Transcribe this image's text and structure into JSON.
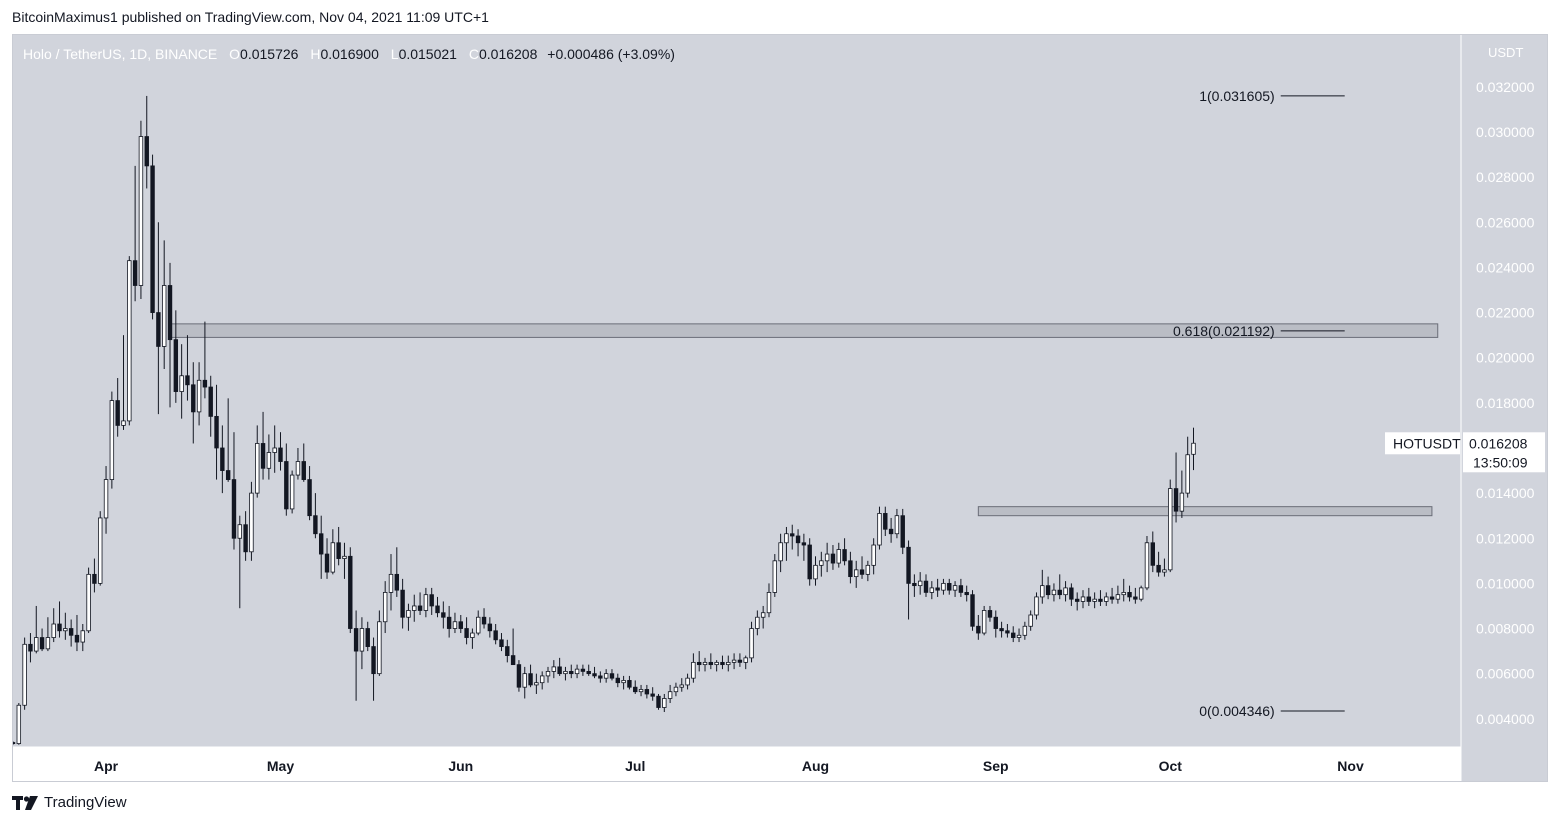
{
  "header": {
    "publisher_line": "BitcoinMaximus1 published on TradingView.com, Nov 04, 2021 11:09 UTC+1"
  },
  "footer": {
    "brand": "TradingView"
  },
  "colors": {
    "plot_bg": "#d1d4dc",
    "axis_bg": "#ffffff",
    "text": "#131722",
    "axis_text": "#ffffff",
    "candle_up_fill": "#ffffff",
    "candle_down_fill": "#131722",
    "candle_outline": "#131722",
    "zone_fill": "#b2b5be",
    "zone_border": "#6a6d78"
  },
  "chart_data": {
    "type": "candlestick",
    "symbol_line": {
      "name": "Holo / TetherUS, 1D, BINANCE",
      "o_label": "O",
      "o": "0.015726",
      "h_label": "H",
      "h": "0.016900",
      "l_label": "L",
      "l": "0.015021",
      "c_label": "C",
      "c": "0.016208",
      "change": "+0.000486 (+3.09%)"
    },
    "currency_label": "USDT",
    "ylim": [
      0.00275,
      0.0343
    ],
    "y_ticks": [
      {
        "value": 0.004,
        "label": "0.004000"
      },
      {
        "value": 0.006,
        "label": "0.006000"
      },
      {
        "value": 0.008,
        "label": "0.008000"
      },
      {
        "value": 0.01,
        "label": "0.010000"
      },
      {
        "value": 0.012,
        "label": "0.012000"
      },
      {
        "value": 0.014,
        "label": "0.014000"
      },
      {
        "value": 0.016,
        "label": "0.016000"
      },
      {
        "value": 0.018,
        "label": "0.018000"
      },
      {
        "value": 0.02,
        "label": "0.020000"
      },
      {
        "value": 0.022,
        "label": "0.022000"
      },
      {
        "value": 0.024,
        "label": "0.024000"
      },
      {
        "value": 0.026,
        "label": "0.026000"
      },
      {
        "value": 0.028,
        "label": "0.028000"
      },
      {
        "value": 0.03,
        "label": "0.030000"
      },
      {
        "value": 0.032,
        "label": "0.032000"
      }
    ],
    "x_domain": [
      "2021-03-16",
      "2021-11-20"
    ],
    "x_ticks": [
      {
        "date": "2021-04-01",
        "label": "Apr"
      },
      {
        "date": "2021-05-01",
        "label": "May"
      },
      {
        "date": "2021-06-01",
        "label": "Jun"
      },
      {
        "date": "2021-07-01",
        "label": "Jul"
      },
      {
        "date": "2021-08-01",
        "label": "Aug"
      },
      {
        "date": "2021-09-01",
        "label": "Sep"
      },
      {
        "date": "2021-10-01",
        "label": "Oct"
      },
      {
        "date": "2021-11-01",
        "label": "Nov"
      }
    ],
    "first_date": "2021-03-16",
    "price_tag": {
      "symbol": "HOTUSDT",
      "price": "0.016208",
      "countdown": "13:50:09",
      "value": 0.016208
    },
    "zones": [
      {
        "start": "2021-04-12",
        "end": "2021-11-16",
        "low": 0.0209,
        "high": 0.0215
      },
      {
        "start": "2021-08-29",
        "end": "2021-11-15",
        "low": 0.013,
        "high": 0.0134
      }
    ],
    "fib_levels": [
      {
        "label": "1(0.031605)",
        "value": 0.031605,
        "line_start": "2021-10-20",
        "line_end": "2021-10-31"
      },
      {
        "label": "0.618(0.021192)",
        "value": 0.021192,
        "line_start": "2021-10-20",
        "line_end": "2021-10-31"
      },
      {
        "label": "0(0.004346)",
        "value": 0.004346,
        "line_start": "2021-10-20",
        "line_end": "2021-10-31"
      }
    ],
    "ohlc": [
      [
        0.00295,
        0.003,
        0.00285,
        0.0029
      ],
      [
        0.0029,
        0.0047,
        0.00285,
        0.0046
      ],
      [
        0.0046,
        0.0076,
        0.0044,
        0.0073
      ],
      [
        0.0073,
        0.0078,
        0.0065,
        0.007
      ],
      [
        0.007,
        0.009,
        0.0069,
        0.0076
      ],
      [
        0.0076,
        0.008,
        0.007,
        0.0071
      ],
      [
        0.0071,
        0.0085,
        0.007,
        0.0076
      ],
      [
        0.0076,
        0.0089,
        0.0074,
        0.0082
      ],
      [
        0.0082,
        0.0092,
        0.0076,
        0.0079
      ],
      [
        0.0079,
        0.0087,
        0.0075,
        0.008
      ],
      [
        0.008,
        0.0084,
        0.0072,
        0.0077
      ],
      [
        0.0077,
        0.0086,
        0.007,
        0.0074
      ],
      [
        0.0074,
        0.0082,
        0.007,
        0.0079
      ],
      [
        0.0079,
        0.0107,
        0.0078,
        0.0104
      ],
      [
        0.0104,
        0.0111,
        0.0096,
        0.01
      ],
      [
        0.01,
        0.0132,
        0.0099,
        0.0129
      ],
      [
        0.0129,
        0.0152,
        0.0122,
        0.0146
      ],
      [
        0.0146,
        0.0185,
        0.0142,
        0.0181
      ],
      [
        0.0181,
        0.0191,
        0.0165,
        0.017
      ],
      [
        0.017,
        0.021,
        0.0168,
        0.0172
      ],
      [
        0.0172,
        0.0245,
        0.017,
        0.0243
      ],
      [
        0.0243,
        0.0285,
        0.0225,
        0.0232
      ],
      [
        0.0232,
        0.0305,
        0.0226,
        0.0298
      ],
      [
        0.0298,
        0.0316,
        0.0275,
        0.0285
      ],
      [
        0.0285,
        0.029,
        0.0217,
        0.022
      ],
      [
        0.022,
        0.026,
        0.0175,
        0.0205
      ],
      [
        0.0205,
        0.0252,
        0.0195,
        0.0232
      ],
      [
        0.0232,
        0.0242,
        0.0178,
        0.0208
      ],
      [
        0.0208,
        0.0221,
        0.018,
        0.0185
      ],
      [
        0.0185,
        0.0206,
        0.0173,
        0.0192
      ],
      [
        0.0192,
        0.021,
        0.0181,
        0.0188
      ],
      [
        0.0188,
        0.0198,
        0.0162,
        0.0176
      ],
      [
        0.0176,
        0.0198,
        0.017,
        0.019
      ],
      [
        0.019,
        0.0216,
        0.0182,
        0.0187
      ],
      [
        0.0187,
        0.0192,
        0.0165,
        0.0174
      ],
      [
        0.0174,
        0.0188,
        0.0146,
        0.016
      ],
      [
        0.016,
        0.017,
        0.014,
        0.015
      ],
      [
        0.015,
        0.0182,
        0.0145,
        0.0146
      ],
      [
        0.0146,
        0.0167,
        0.0115,
        0.012
      ],
      [
        0.012,
        0.013,
        0.0089,
        0.0126
      ],
      [
        0.0126,
        0.0132,
        0.011,
        0.0114
      ],
      [
        0.0114,
        0.0145,
        0.011,
        0.014
      ],
      [
        0.014,
        0.017,
        0.0138,
        0.0162
      ],
      [
        0.0162,
        0.0176,
        0.0146,
        0.0151
      ],
      [
        0.0151,
        0.0166,
        0.0146,
        0.0158
      ],
      [
        0.0158,
        0.017,
        0.0149,
        0.016
      ],
      [
        0.016,
        0.0167,
        0.015,
        0.0154
      ],
      [
        0.0154,
        0.0162,
        0.013,
        0.0133
      ],
      [
        0.0133,
        0.015,
        0.0131,
        0.0148
      ],
      [
        0.0148,
        0.016,
        0.0146,
        0.0154
      ],
      [
        0.0154,
        0.0162,
        0.0145,
        0.0146
      ],
      [
        0.0146,
        0.0152,
        0.0128,
        0.013
      ],
      [
        0.013,
        0.014,
        0.012,
        0.0122
      ],
      [
        0.0122,
        0.013,
        0.0102,
        0.0113
      ],
      [
        0.0113,
        0.012,
        0.0102,
        0.0105
      ],
      [
        0.0105,
        0.0124,
        0.0104,
        0.0118
      ],
      [
        0.0118,
        0.0125,
        0.0108,
        0.0111
      ],
      [
        0.0111,
        0.0118,
        0.0102,
        0.0112
      ],
      [
        0.0112,
        0.0116,
        0.0078,
        0.008
      ],
      [
        0.008,
        0.0088,
        0.0048,
        0.007
      ],
      [
        0.007,
        0.0085,
        0.0062,
        0.008
      ],
      [
        0.008,
        0.0083,
        0.007,
        0.0072
      ],
      [
        0.0072,
        0.0076,
        0.0048,
        0.006
      ],
      [
        0.006,
        0.0088,
        0.0059,
        0.0083
      ],
      [
        0.0083,
        0.0101,
        0.0078,
        0.0096
      ],
      [
        0.0096,
        0.0113,
        0.0088,
        0.0104
      ],
      [
        0.0104,
        0.0116,
        0.0094,
        0.0097
      ],
      [
        0.0097,
        0.0102,
        0.008,
        0.0085
      ],
      [
        0.0085,
        0.0091,
        0.0079,
        0.0088
      ],
      [
        0.0088,
        0.0095,
        0.0083,
        0.009
      ],
      [
        0.009,
        0.0096,
        0.0086,
        0.0088
      ],
      [
        0.0088,
        0.0098,
        0.0085,
        0.0095
      ],
      [
        0.0095,
        0.0098,
        0.0086,
        0.009
      ],
      [
        0.009,
        0.0094,
        0.0085,
        0.0087
      ],
      [
        0.0087,
        0.0092,
        0.008,
        0.0085
      ],
      [
        0.0085,
        0.009,
        0.0076,
        0.008
      ],
      [
        0.008,
        0.0087,
        0.0078,
        0.0083
      ],
      [
        0.0083,
        0.0086,
        0.0078,
        0.008
      ],
      [
        0.008,
        0.0085,
        0.0073,
        0.0076
      ],
      [
        0.0076,
        0.008,
        0.0071,
        0.0078
      ],
      [
        0.0078,
        0.0088,
        0.0077,
        0.0085
      ],
      [
        0.0085,
        0.0089,
        0.008,
        0.0082
      ],
      [
        0.0082,
        0.0085,
        0.0076,
        0.0079
      ],
      [
        0.0079,
        0.0082,
        0.0073,
        0.0075
      ],
      [
        0.0075,
        0.0078,
        0.007,
        0.0072
      ],
      [
        0.0072,
        0.0075,
        0.0065,
        0.0068
      ],
      [
        0.0068,
        0.008,
        0.0066,
        0.0064
      ],
      [
        0.0064,
        0.0066,
        0.0052,
        0.0054
      ],
      [
        0.0054,
        0.0063,
        0.0049,
        0.006
      ],
      [
        0.006,
        0.0064,
        0.0054,
        0.0055
      ],
      [
        0.0055,
        0.006,
        0.0051,
        0.0056
      ],
      [
        0.0056,
        0.0061,
        0.0053,
        0.0059
      ],
      [
        0.0059,
        0.0063,
        0.0056,
        0.0061
      ],
      [
        0.0061,
        0.0066,
        0.0058,
        0.0063
      ],
      [
        0.0063,
        0.0067,
        0.0059,
        0.006
      ],
      [
        0.006,
        0.0063,
        0.0057,
        0.0061
      ],
      [
        0.0061,
        0.0064,
        0.0058,
        0.006
      ],
      [
        0.006,
        0.0064,
        0.0058,
        0.0062
      ],
      [
        0.0062,
        0.0064,
        0.0059,
        0.0061
      ],
      [
        0.0061,
        0.0064,
        0.0059,
        0.006
      ],
      [
        0.006,
        0.0063,
        0.0058,
        0.0059
      ],
      [
        0.0059,
        0.0061,
        0.0056,
        0.0058
      ],
      [
        0.0058,
        0.0062,
        0.0056,
        0.006
      ],
      [
        0.006,
        0.0062,
        0.0057,
        0.0058
      ],
      [
        0.0058,
        0.006,
        0.0054,
        0.0056
      ],
      [
        0.0056,
        0.0059,
        0.0053,
        0.0057
      ],
      [
        0.0057,
        0.0059,
        0.0053,
        0.0054
      ],
      [
        0.0054,
        0.0057,
        0.0051,
        0.0052
      ],
      [
        0.0052,
        0.0055,
        0.005,
        0.0053
      ],
      [
        0.0053,
        0.0055,
        0.0049,
        0.0051
      ],
      [
        0.0051,
        0.0054,
        0.0048,
        0.005
      ],
      [
        0.005,
        0.0051,
        0.0044,
        0.0045
      ],
      [
        0.0045,
        0.0051,
        0.0043,
        0.0049
      ],
      [
        0.0049,
        0.0055,
        0.0047,
        0.0052
      ],
      [
        0.0052,
        0.0056,
        0.005,
        0.0054
      ],
      [
        0.0054,
        0.0058,
        0.0052,
        0.0055
      ],
      [
        0.0055,
        0.006,
        0.0053,
        0.0058
      ],
      [
        0.0058,
        0.0069,
        0.0056,
        0.0065
      ],
      [
        0.0065,
        0.007,
        0.0061,
        0.0064
      ],
      [
        0.0064,
        0.0067,
        0.0061,
        0.0065
      ],
      [
        0.0065,
        0.0069,
        0.0062,
        0.0064
      ],
      [
        0.0064,
        0.0066,
        0.0061,
        0.0065
      ],
      [
        0.0065,
        0.0068,
        0.0062,
        0.0064
      ],
      [
        0.0064,
        0.0068,
        0.0061,
        0.0065
      ],
      [
        0.0065,
        0.0069,
        0.0062,
        0.0066
      ],
      [
        0.0066,
        0.0069,
        0.0063,
        0.0065
      ],
      [
        0.0065,
        0.0068,
        0.0062,
        0.0067
      ],
      [
        0.0067,
        0.0083,
        0.0065,
        0.008
      ],
      [
        0.008,
        0.0088,
        0.0077,
        0.0085
      ],
      [
        0.0085,
        0.009,
        0.008,
        0.0087
      ],
      [
        0.0087,
        0.01,
        0.0085,
        0.0096
      ],
      [
        0.0096,
        0.0113,
        0.0094,
        0.011
      ],
      [
        0.011,
        0.0122,
        0.0105,
        0.0118
      ],
      [
        0.0118,
        0.0125,
        0.011,
        0.0122
      ],
      [
        0.0122,
        0.0126,
        0.0115,
        0.0121
      ],
      [
        0.0121,
        0.0124,
        0.0112,
        0.0118
      ],
      [
        0.0118,
        0.0122,
        0.011,
        0.0117
      ],
      [
        0.0117,
        0.012,
        0.0099,
        0.0102
      ],
      [
        0.0102,
        0.0112,
        0.0099,
        0.0108
      ],
      [
        0.0108,
        0.0114,
        0.0103,
        0.011
      ],
      [
        0.011,
        0.0118,
        0.0105,
        0.0113
      ],
      [
        0.0113,
        0.0117,
        0.0106,
        0.0109
      ],
      [
        0.0109,
        0.0118,
        0.0107,
        0.0115
      ],
      [
        0.0115,
        0.012,
        0.0108,
        0.011
      ],
      [
        0.011,
        0.0114,
        0.01,
        0.0103
      ],
      [
        0.0103,
        0.011,
        0.0098,
        0.0106
      ],
      [
        0.0106,
        0.0112,
        0.0102,
        0.0104
      ],
      [
        0.0104,
        0.011,
        0.0101,
        0.0108
      ],
      [
        0.0108,
        0.012,
        0.0104,
        0.0117
      ],
      [
        0.0117,
        0.0134,
        0.0115,
        0.0131
      ],
      [
        0.0131,
        0.0134,
        0.0121,
        0.0124
      ],
      [
        0.0124,
        0.0129,
        0.0118,
        0.0122
      ],
      [
        0.0122,
        0.0133,
        0.012,
        0.013
      ],
      [
        0.013,
        0.0133,
        0.0113,
        0.0116
      ],
      [
        0.0116,
        0.0119,
        0.0084,
        0.01
      ],
      [
        0.01,
        0.0104,
        0.0094,
        0.0099
      ],
      [
        0.0099,
        0.0105,
        0.0095,
        0.0101
      ],
      [
        0.0101,
        0.0104,
        0.0094,
        0.0096
      ],
      [
        0.0096,
        0.0101,
        0.0093,
        0.0098
      ],
      [
        0.0098,
        0.0102,
        0.0094,
        0.0097
      ],
      [
        0.0097,
        0.0102,
        0.0095,
        0.01
      ],
      [
        0.01,
        0.0102,
        0.0095,
        0.0097
      ],
      [
        0.0097,
        0.0101,
        0.0094,
        0.0099
      ],
      [
        0.0099,
        0.0102,
        0.0094,
        0.0096
      ],
      [
        0.0096,
        0.0099,
        0.0092,
        0.0095
      ],
      [
        0.0095,
        0.0097,
        0.0079,
        0.0081
      ],
      [
        0.0081,
        0.0086,
        0.0075,
        0.0078
      ],
      [
        0.0078,
        0.009,
        0.0077,
        0.0088
      ],
      [
        0.0088,
        0.009,
        0.0083,
        0.0085
      ],
      [
        0.0085,
        0.0088,
        0.0076,
        0.008
      ],
      [
        0.008,
        0.0083,
        0.0076,
        0.0079
      ],
      [
        0.0079,
        0.0082,
        0.0076,
        0.0078
      ],
      [
        0.0078,
        0.0081,
        0.0074,
        0.0076
      ],
      [
        0.0076,
        0.008,
        0.0074,
        0.0077
      ],
      [
        0.0077,
        0.0083,
        0.0075,
        0.0081
      ],
      [
        0.0081,
        0.0088,
        0.0079,
        0.0086
      ],
      [
        0.0086,
        0.0096,
        0.0084,
        0.0094
      ],
      [
        0.0094,
        0.0106,
        0.0091,
        0.0099
      ],
      [
        0.0099,
        0.0103,
        0.0093,
        0.0095
      ],
      [
        0.0095,
        0.01,
        0.0092,
        0.0097
      ],
      [
        0.0097,
        0.0104,
        0.0093,
        0.0095
      ],
      [
        0.0095,
        0.0101,
        0.0092,
        0.0098
      ],
      [
        0.0098,
        0.01,
        0.009,
        0.0093
      ],
      [
        0.0093,
        0.0096,
        0.0088,
        0.0092
      ],
      [
        0.0092,
        0.0097,
        0.0089,
        0.0094
      ],
      [
        0.0094,
        0.0098,
        0.009,
        0.0092
      ],
      [
        0.0092,
        0.0096,
        0.0089,
        0.0093
      ],
      [
        0.0093,
        0.0097,
        0.009,
        0.0092
      ],
      [
        0.0092,
        0.0096,
        0.009,
        0.0094
      ],
      [
        0.0094,
        0.0098,
        0.0091,
        0.0093
      ],
      [
        0.0093,
        0.0099,
        0.0091,
        0.0095
      ],
      [
        0.0095,
        0.0102,
        0.0092,
        0.0096
      ],
      [
        0.0096,
        0.0099,
        0.0092,
        0.0094
      ],
      [
        0.0094,
        0.0098,
        0.0091,
        0.0093
      ],
      [
        0.0093,
        0.0099,
        0.0092,
        0.0098
      ],
      [
        0.0098,
        0.0121,
        0.0097,
        0.0118
      ],
      [
        0.0118,
        0.0123,
        0.0105,
        0.0108
      ],
      [
        0.0108,
        0.0114,
        0.0103,
        0.0105
      ],
      [
        0.0105,
        0.0111,
        0.0103,
        0.0106
      ],
      [
        0.0106,
        0.0146,
        0.0105,
        0.0142
      ],
      [
        0.0142,
        0.0158,
        0.0127,
        0.0132
      ],
      [
        0.0132,
        0.015,
        0.0129,
        0.014
      ],
      [
        0.014,
        0.0165,
        0.0138,
        0.0157
      ],
      [
        0.01572,
        0.0169,
        0.01502,
        0.01621
      ]
    ]
  }
}
